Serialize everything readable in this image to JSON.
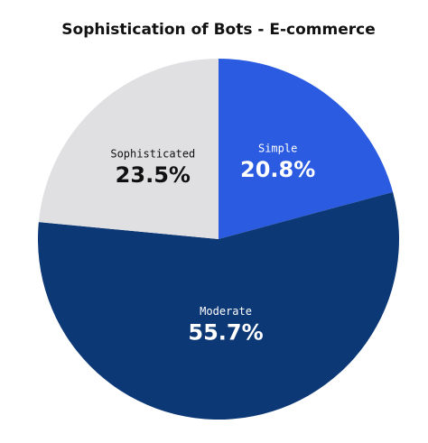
{
  "chart_data": {
    "type": "pie",
    "title": "Sophistication of Bots - E-commerce",
    "categories": [
      "Simple",
      "Moderate",
      "Sophisticated"
    ],
    "values": [
      20.8,
      55.7,
      23.5
    ],
    "value_labels": [
      "20.8%",
      "55.7%",
      "23.5%"
    ],
    "colors": [
      "#2a5be0",
      "#0c3876",
      "#e0e0e3"
    ],
    "label_colors": [
      "#ffffff",
      "#ffffff",
      "#111111"
    ]
  }
}
